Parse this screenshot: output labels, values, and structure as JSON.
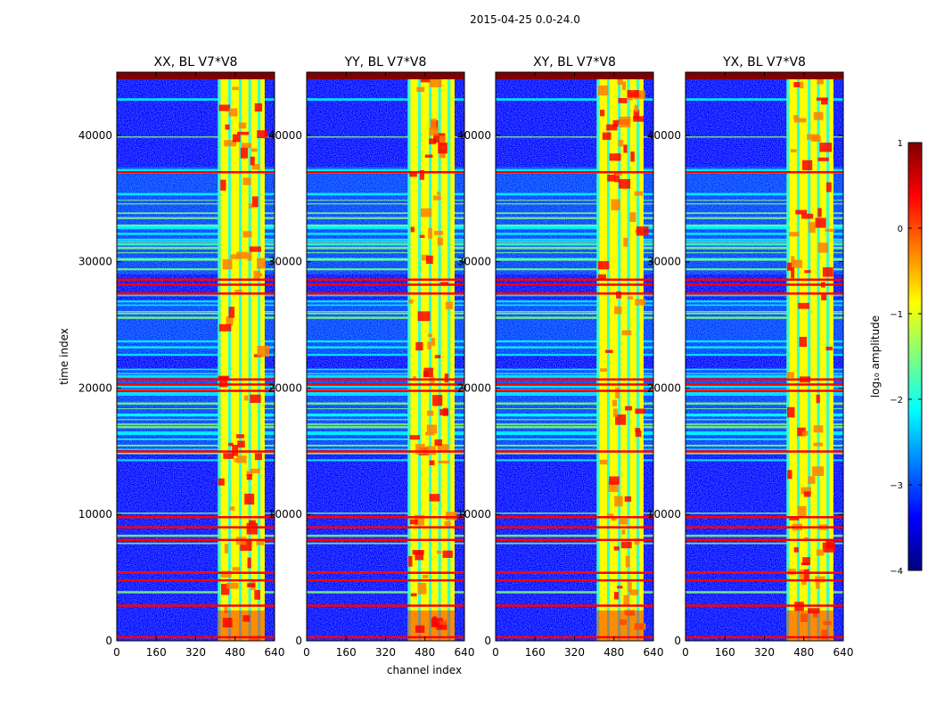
{
  "figure": {
    "suptitle": "2015-04-25 0.0-24.0",
    "xlabel": "channel index",
    "ylabel": "time index"
  },
  "colors": {
    "jet": [
      "#00007f",
      "#0000ff",
      "#007fff",
      "#00ffff",
      "#7fff7f",
      "#ffff00",
      "#ff7f00",
      "#ff0000",
      "#7f0000"
    ],
    "background": "#ffffff",
    "axis": "#000000"
  },
  "chart_data": {
    "type": "heatmap",
    "panels": [
      {
        "title": "XX, BL V7*V8"
      },
      {
        "title": "YY, BL V7*V8"
      },
      {
        "title": "XY, BL V7*V8"
      },
      {
        "title": "YX, BL V7*V8"
      }
    ],
    "x_range": [
      0,
      640
    ],
    "x_ticks": [
      0,
      160,
      320,
      480,
      640
    ],
    "x_tick_labels": [
      "0",
      "160",
      "320",
      "480",
      "640"
    ],
    "y_range": [
      0,
      45000
    ],
    "y_ticks": [
      0,
      10000,
      20000,
      30000,
      40000
    ],
    "y_tick_labels": [
      "0",
      "10000",
      "20000",
      "30000",
      "40000"
    ],
    "colorbar": {
      "label": "log₁₀ amplitude",
      "range": [
        -4,
        1
      ],
      "ticks": [
        1,
        0,
        -1,
        -2,
        -3,
        -4
      ],
      "tick_labels": [
        "1",
        "0",
        "−1",
        "−2",
        "−3",
        "−4"
      ]
    },
    "band_channel_range": [
      410,
      600
    ],
    "bright_rows": [
      300,
      2800,
      4800,
      5400,
      8000,
      9000,
      9800,
      15000,
      19800,
      20300,
      20700,
      27500,
      28200,
      28600,
      37100,
      44600
    ],
    "medium_row_ranges": [
      [
        14800,
        21500
      ],
      [
        22500,
        27000
      ],
      [
        29000,
        37500
      ]
    ]
  }
}
